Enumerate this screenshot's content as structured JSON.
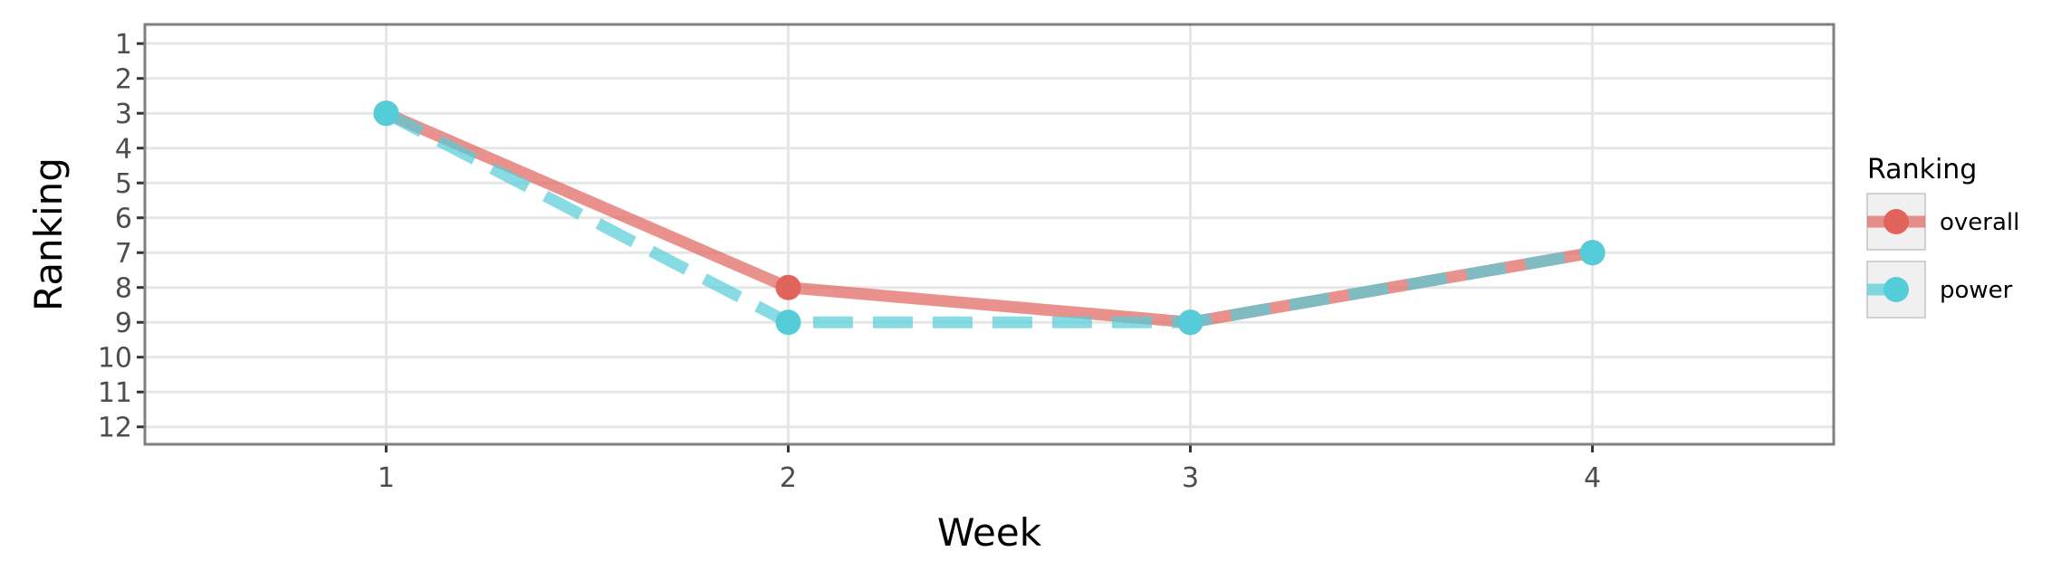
{
  "chart_data": {
    "type": "line",
    "title": "",
    "xlabel": "Week",
    "ylabel": "Ranking",
    "x": [
      1,
      2,
      3,
      4
    ],
    "x_ticks": [
      "1",
      "2",
      "3",
      "4"
    ],
    "xlim": [
      0.4,
      4.6
    ],
    "y_ticks": [
      "1",
      "2",
      "3",
      "4",
      "5",
      "6",
      "7",
      "8",
      "9",
      "10",
      "11",
      "12"
    ],
    "ylim": [
      12.5,
      0.45
    ],
    "y_reversed": true,
    "grid": true,
    "legend": {
      "title": "Ranking",
      "placement": "right"
    },
    "series": [
      {
        "name": "overall",
        "values": [
          3,
          8,
          9,
          7
        ],
        "color": "#E0645C",
        "line_style": "solid"
      },
      {
        "name": "power",
        "values": [
          3,
          9,
          9,
          7
        ],
        "color": "#54CDD8",
        "line_style": "dashed"
      }
    ]
  }
}
